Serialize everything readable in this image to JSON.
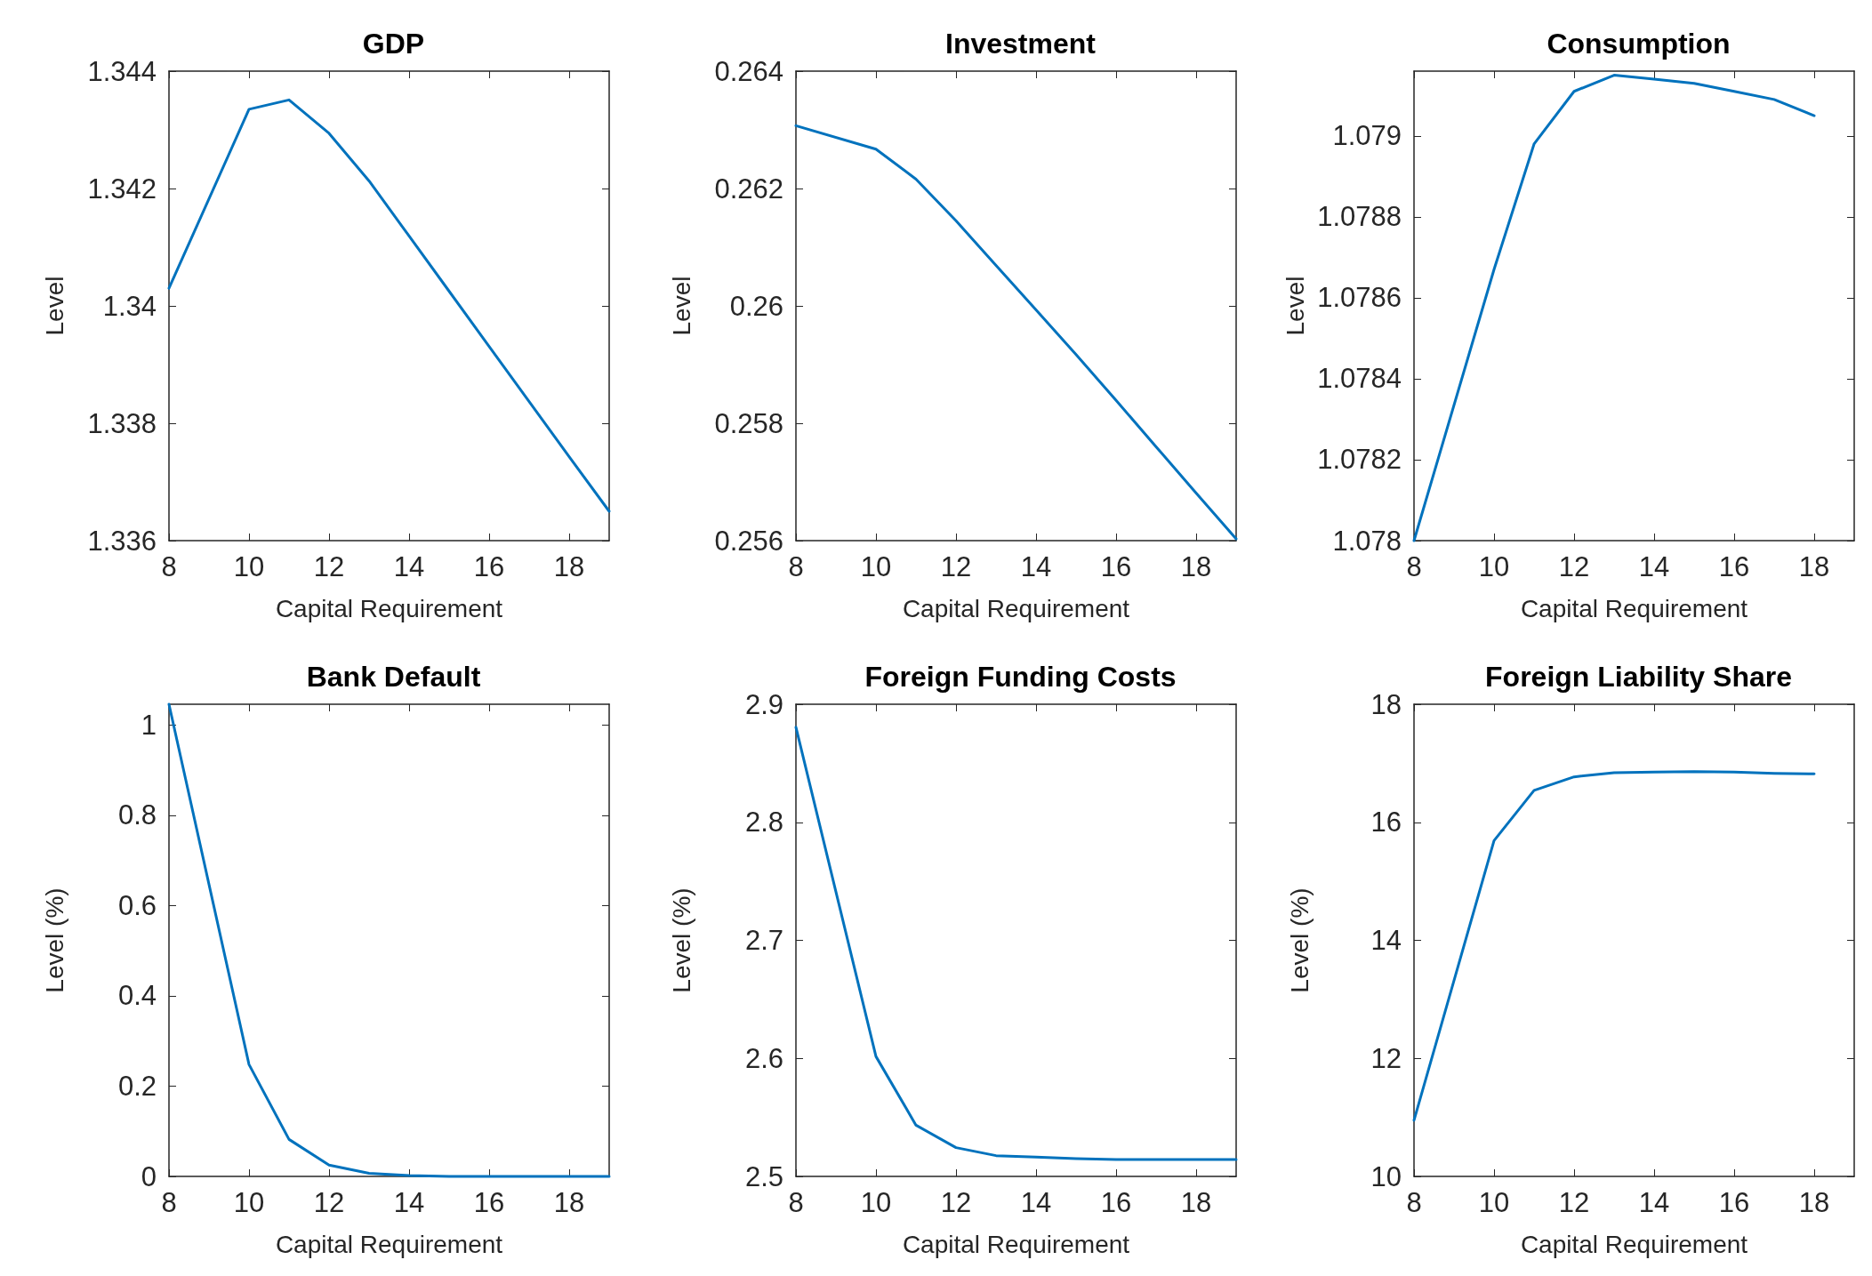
{
  "chart_data": [
    {
      "type": "line",
      "title": "GDP",
      "xlabel": "Capital Requirement",
      "ylabel": "Level",
      "x": [
        8,
        10,
        11,
        12,
        13,
        14,
        15,
        16,
        17,
        18,
        19
      ],
      "xlim": [
        8,
        19
      ],
      "xticks": [
        8,
        10,
        12,
        14,
        16,
        18
      ],
      "ylim": [
        1.336,
        1.344
      ],
      "yticks": [
        1.336,
        1.338,
        1.34,
        1.342,
        1.344
      ],
      "grid": false,
      "marker": "none",
      "line_style": "solid",
      "series": [
        {
          "color": "#0072bd",
          "values": [
            1.3403,
            1.34335,
            1.34351,
            1.34294,
            1.34213,
            1.34119,
            1.34025,
            1.33931,
            1.33837,
            1.33743,
            1.3365
          ]
        }
      ]
    },
    {
      "type": "line",
      "title": "Investment",
      "xlabel": "Capital Requirement",
      "ylabel": "Level",
      "x": [
        8,
        10,
        11,
        12,
        13,
        14,
        15,
        16,
        17,
        18,
        19
      ],
      "xlim": [
        8,
        19
      ],
      "xticks": [
        8,
        10,
        12,
        14,
        16,
        18
      ],
      "ylim": [
        0.256,
        0.264
      ],
      "yticks": [
        0.256,
        0.258,
        0.26,
        0.262,
        0.264
      ],
      "grid": false,
      "marker": "none",
      "line_style": "solid",
      "series": [
        {
          "color": "#0072bd",
          "values": [
            0.26307,
            0.26267,
            0.26216,
            0.26145,
            0.26069,
            0.25993,
            0.25917,
            0.25839,
            0.2576,
            0.25681,
            0.25603
          ]
        }
      ]
    },
    {
      "type": "line",
      "title": "Consumption",
      "xlabel": "Capital Requirement",
      "ylabel": "Level",
      "x": [
        8,
        10,
        11,
        12,
        13,
        14,
        15,
        16,
        17,
        18
      ],
      "xlim": [
        8,
        19
      ],
      "xticks": [
        8,
        10,
        12,
        14,
        16,
        18
      ],
      "ylim": [
        1.078,
        1.07916
      ],
      "yticks": [
        1.078,
        1.0782,
        1.0784,
        1.0786,
        1.0788,
        1.079
      ],
      "grid": false,
      "marker": "none",
      "line_style": "solid",
      "series": [
        {
          "color": "#0072bd",
          "values": [
            1.078,
            1.07867,
            1.07898,
            1.07911,
            1.07915,
            1.07914,
            1.07913,
            1.07911,
            1.07909,
            1.07905
          ]
        }
      ]
    },
    {
      "type": "line",
      "title": "Bank Default",
      "xlabel": "Capital Requirement",
      "ylabel": "Level (%)",
      "x": [
        8,
        10,
        11,
        12,
        13,
        14,
        15,
        16,
        17,
        18,
        19
      ],
      "xlim": [
        8,
        19
      ],
      "xticks": [
        8,
        10,
        12,
        14,
        16,
        18
      ],
      "ylim": [
        0,
        1.046
      ],
      "yticks": [
        0,
        0.2,
        0.4,
        0.6,
        0.8,
        1
      ],
      "grid": false,
      "marker": "none",
      "line_style": "solid",
      "series": [
        {
          "color": "#0072bd",
          "values": [
            1.046,
            0.248,
            0.082,
            0.025,
            0.007,
            0.002,
            0,
            0,
            0,
            0,
            0
          ]
        }
      ]
    },
    {
      "type": "line",
      "title": "Foreign Funding Costs",
      "xlabel": "Capital Requirement",
      "ylabel": "Level (%)",
      "x": [
        8,
        10,
        11,
        12,
        13,
        14,
        15,
        16,
        17,
        18,
        19
      ],
      "xlim": [
        8,
        19
      ],
      "xticks": [
        8,
        10,
        12,
        14,
        16,
        18
      ],
      "ylim": [
        2.5,
        2.9
      ],
      "yticks": [
        2.5,
        2.6,
        2.7,
        2.8,
        2.9
      ],
      "grid": false,
      "marker": "none",
      "line_style": "solid",
      "series": [
        {
          "color": "#0072bd",
          "values": [
            2.8805,
            2.6016,
            2.5434,
            2.5244,
            2.5176,
            2.5163,
            2.515,
            2.5144,
            2.5144,
            2.5144,
            2.5144
          ]
        }
      ]
    },
    {
      "type": "line",
      "title": "Foreign Liability Share",
      "xlabel": "Capital Requirement",
      "ylabel": "Level (%)",
      "x": [
        8,
        10,
        11,
        12,
        13,
        14,
        15,
        16,
        17,
        18
      ],
      "xlim": [
        8,
        19
      ],
      "xticks": [
        8,
        10,
        12,
        14,
        16,
        18
      ],
      "ylim": [
        10,
        18
      ],
      "yticks": [
        10,
        12,
        14,
        16,
        18
      ],
      "grid": false,
      "marker": "none",
      "line_style": "solid",
      "series": [
        {
          "color": "#0072bd",
          "values": [
            10.95,
            15.69,
            16.54,
            16.77,
            16.84,
            16.85,
            16.86,
            16.85,
            16.83,
            16.82
          ]
        }
      ]
    }
  ]
}
